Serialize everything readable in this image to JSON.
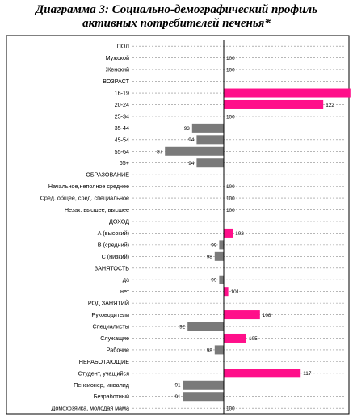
{
  "title_line1": "Диаграмма 3: Социально-демографический профиль",
  "title_line2": "активных потребителей печенья*",
  "colors": {
    "positive": "#ff0f8a",
    "negative": "#7a7a7a",
    "axis": "#000000",
    "frame": "#000000",
    "grid": "#8a8a8a"
  },
  "chart_data": {
    "type": "bar",
    "orientation": "horizontal",
    "title": "Диаграмма 3: Социально-демографический профиль активных потребителей печенья*",
    "baseline": 100,
    "xlim": [
      80,
      140
    ],
    "grid": true,
    "rows": [
      {
        "label": "ПОЛ",
        "header": true
      },
      {
        "label": "Мужской",
        "value": 100
      },
      {
        "label": "Женский",
        "value": 100
      },
      {
        "label": "ВОЗРАСТ",
        "header": true
      },
      {
        "label": "16-19",
        "value": 128
      },
      {
        "label": "20-24",
        "value": 122
      },
      {
        "label": "25-34",
        "value": 100
      },
      {
        "label": "35-44",
        "value": 93
      },
      {
        "label": "45-54",
        "value": 94
      },
      {
        "label": "55-64",
        "value": 87
      },
      {
        "label": "65+",
        "value": 94
      },
      {
        "label": "ОБРАЗОВАНИЕ",
        "header": true
      },
      {
        "label": "Начальное,неполное среднее",
        "value": 100
      },
      {
        "label": "Сред. общее, сред. специальное",
        "value": 100
      },
      {
        "label": "Незак. высшее, высшее",
        "value": 100
      },
      {
        "label": "ДОХОД",
        "header": true
      },
      {
        "label": "А (высокий)",
        "value": 102
      },
      {
        "label": "B (средний)",
        "value": 99
      },
      {
        "label": "C (низкий)",
        "value": 98
      },
      {
        "label": "ЗАНЯТОСТЬ",
        "header": true
      },
      {
        "label": "да",
        "value": 99
      },
      {
        "label": "нет",
        "value": 101
      },
      {
        "label": "РОД ЗАНЯТИЙ",
        "header": true
      },
      {
        "label": "Руководители",
        "value": 108
      },
      {
        "label": "Специалисты",
        "value": 92
      },
      {
        "label": "Служащие",
        "value": 105
      },
      {
        "label": "Рабочие",
        "value": 98
      },
      {
        "label": "НЕРАБОТАЮЩИЕ",
        "header": true
      },
      {
        "label": "Студент, учащийся",
        "value": 117
      },
      {
        "label": "Пенсионер, инвалид",
        "value": 91
      },
      {
        "label": "Безработный",
        "value": 91
      },
      {
        "label": "Домохозяйка, молодая мама",
        "value": 100
      }
    ]
  }
}
